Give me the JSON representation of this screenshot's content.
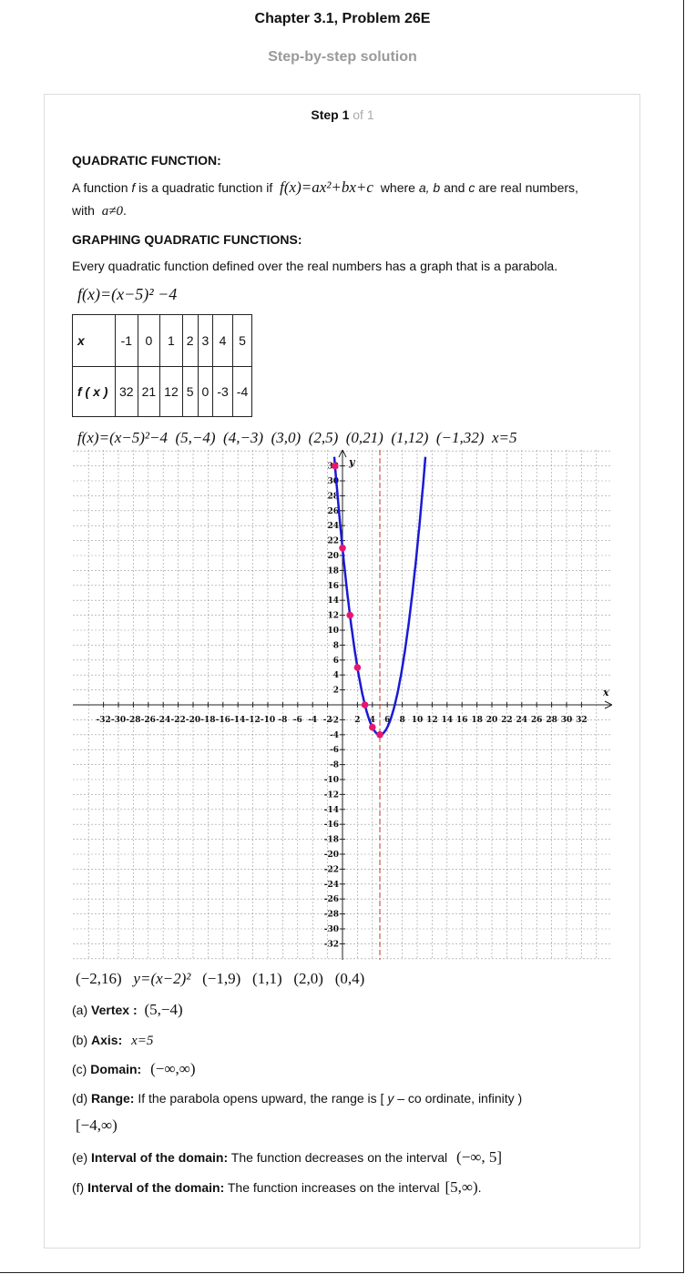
{
  "header": {
    "title": "Chapter 3.1, Problem 26E",
    "subtitle": "Step-by-step solution"
  },
  "step": {
    "label": "Step 1",
    "of": "of 1"
  },
  "content": {
    "h1": "QUADRATIC FUNCTION:",
    "p1_a": "A function",
    "p1_f": "f",
    "p1_b": "is a quadratic function if",
    "p1_formula": "f(x)=ax²+bx+c",
    "p1_c": "where",
    "p1_vars": "a, b",
    "p1_and": "and",
    "p1_cvar": "c",
    "p1_d": "are real numbers,",
    "p1_with": "with",
    "p1_cond": "a≠0",
    "h2": "GRAPHING QUADRATIC FUNCTIONS:",
    "p2": "Every quadratic function defined over the real numbers has a graph that is a parabola.",
    "function": "f(x)=(x−5)² −4",
    "table": {
      "x_label": "x",
      "fx_label": "f ( x )",
      "x": [
        "-1",
        "0",
        "1",
        "2",
        "3",
        "4",
        "5"
      ],
      "fx": [
        "32",
        "21",
        "12",
        "5",
        "0",
        "-3",
        "-4"
      ]
    },
    "graph_caption": [
      "f(x)=(x−5)²−4",
      "(5,−4)",
      "(4,−3)",
      "(3,0)",
      "(2,5)",
      "(0,21)",
      "(1,12)",
      "(−1,32)",
      "x=5"
    ],
    "bottom_caption": [
      "(−2,16)",
      "y=(x−2)²",
      "(−1,9)",
      "(1,1)",
      "(2,0)",
      "(0,4)"
    ],
    "answers": {
      "a_prefix": "(a)",
      "a_label": "Vertex :",
      "a_value": "(5,−4)",
      "b_prefix": "(b)",
      "b_label": "Axis:",
      "b_value": "x=5",
      "c_prefix": "(c)",
      "c_label": "Domain:",
      "c_value": "(−∞,∞)",
      "d_prefix": "(d)",
      "d_label": "Range:",
      "d_text_a": "If the parabola opens upward, the range is [",
      "d_text_y": "y",
      "d_text_b": "– co ordinate, infinity )",
      "d_value": "[−4,∞)",
      "e_prefix": "(e)",
      "e_label": "Interval of the domain:",
      "e_text": "The function decreases on the interval",
      "e_value": "(−∞, 5]",
      "f_prefix": "(f)",
      "f_label": "Interval of the domain:",
      "f_text": "The function increases on the interval",
      "f_value": "[5,∞)",
      "f_end": "."
    }
  },
  "chart_data": {
    "type": "line",
    "function": "f(x)=(x-5)^2-4",
    "xlim": [
      -33,
      35
    ],
    "ylim": [
      -34,
      34
    ],
    "x_ticks": [
      -32,
      -30,
      -28,
      -26,
      -24,
      -22,
      -20,
      -18,
      -16,
      -14,
      -12,
      -10,
      -8,
      -6,
      -4,
      -2,
      2,
      4,
      6,
      8,
      10,
      12,
      14,
      16,
      18,
      20,
      22,
      24,
      26,
      28,
      30,
      32
    ],
    "y_ticks": [
      32,
      30,
      28,
      26,
      24,
      22,
      20,
      18,
      16,
      14,
      12,
      10,
      8,
      6,
      4,
      2,
      -2,
      -4,
      -6,
      -8,
      -10,
      -12,
      -14,
      -16,
      -18,
      -20,
      -22,
      -24,
      -26,
      -28,
      -30,
      -32
    ],
    "xlabel": "x",
    "ylabel": "y",
    "axis_of_symmetry": 5,
    "grid": true,
    "points": [
      {
        "x": -1,
        "y": 32
      },
      {
        "x": 0,
        "y": 21
      },
      {
        "x": 1,
        "y": 12
      },
      {
        "x": 2,
        "y": 5
      },
      {
        "x": 3,
        "y": 0
      },
      {
        "x": 4,
        "y": -3
      },
      {
        "x": 5,
        "y": -4
      }
    ],
    "curve_color": "#1a1ad4",
    "point_color": "#e8166f",
    "axis_line_color": "#c0392b"
  }
}
